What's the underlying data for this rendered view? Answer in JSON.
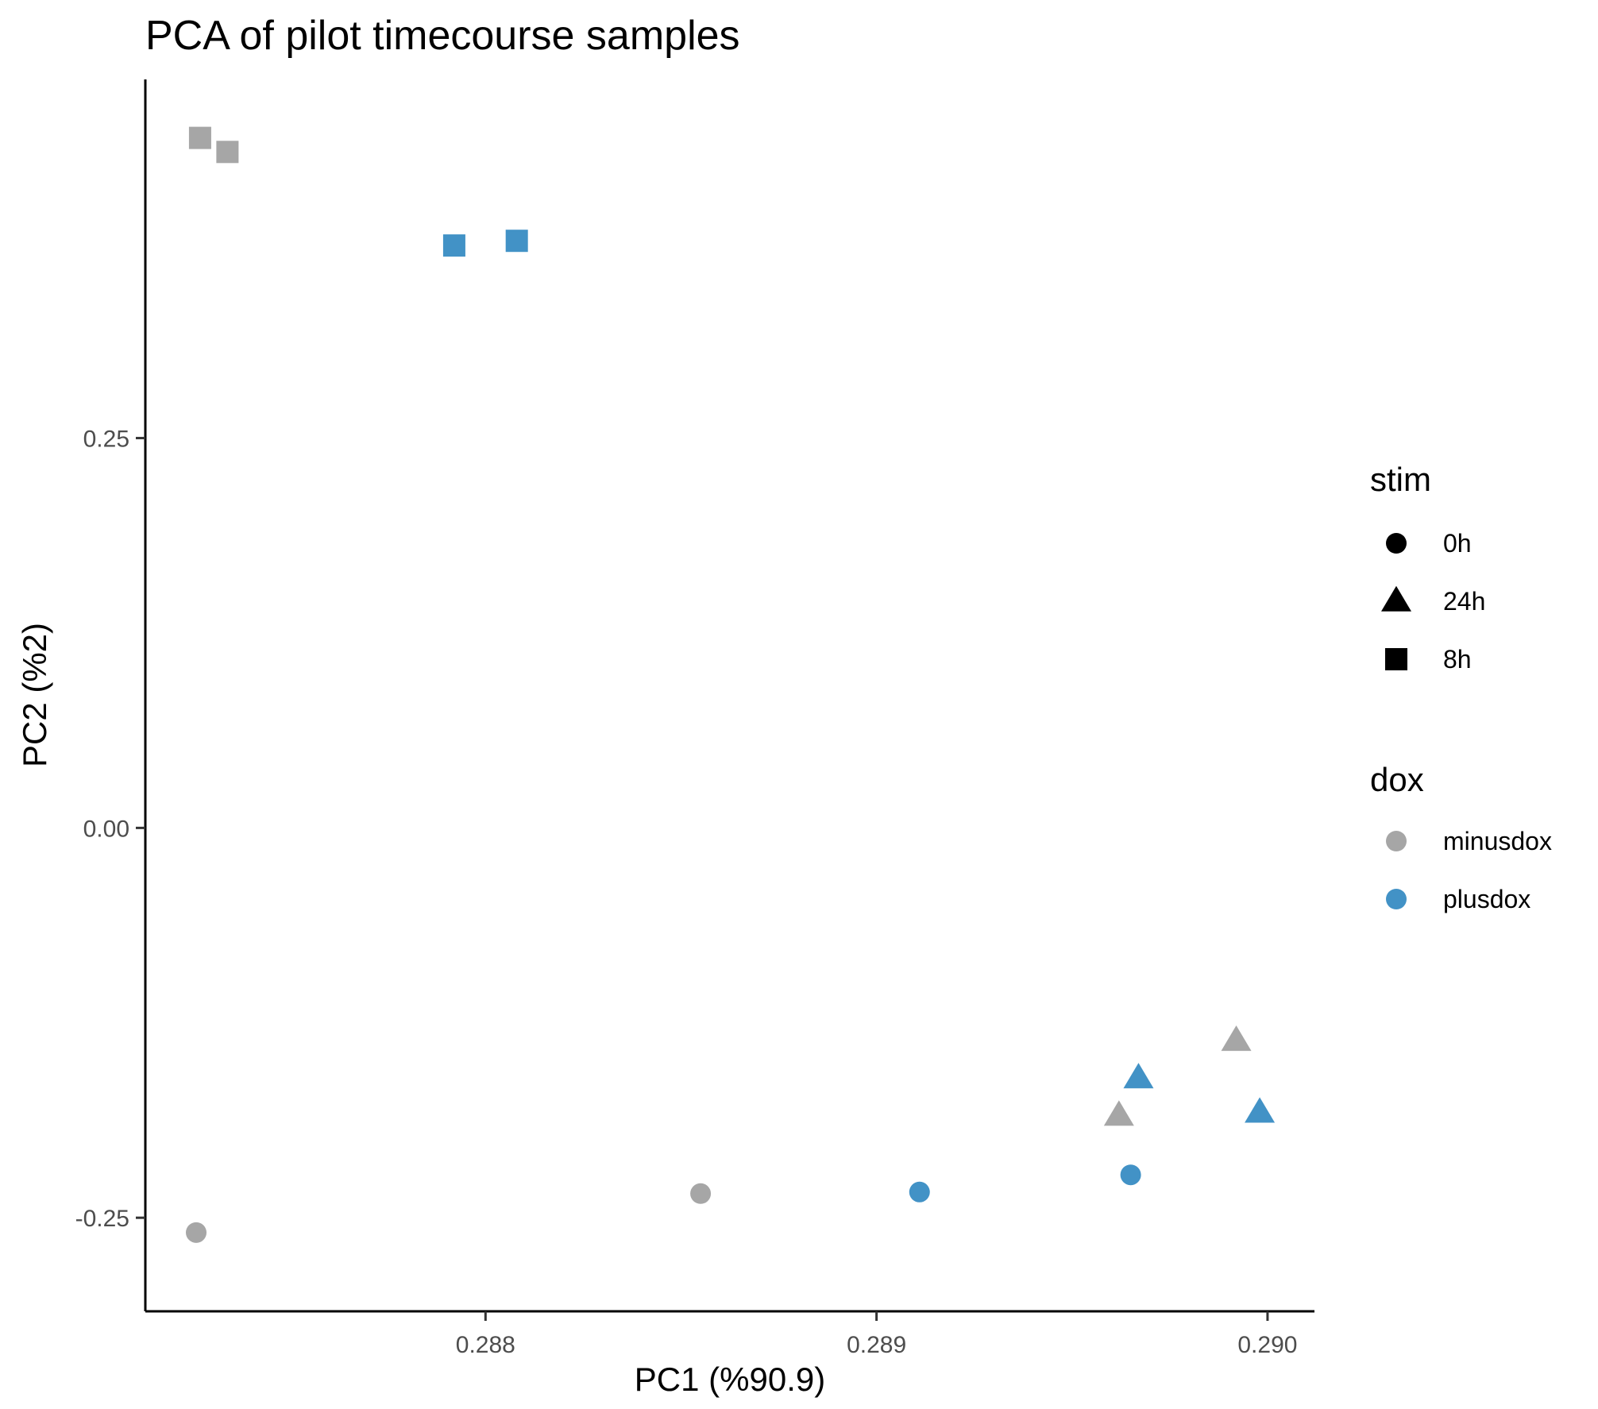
{
  "chart_data": {
    "type": "scatter",
    "title": "PCA of pilot timecourse samples",
    "xlabel": "PC1 (%90.9)",
    "ylabel": "PC2 (%2)",
    "xlim": [
      0.28713,
      0.29012
    ],
    "ylim": [
      -0.31,
      0.48
    ],
    "xticks": [
      0.288,
      0.289,
      0.29
    ],
    "xtick_labels": [
      "0.288",
      "0.289",
      "0.290"
    ],
    "yticks": [
      -0.25,
      0.0,
      0.25
    ],
    "ytick_labels": [
      "-0.25",
      "0.00",
      "0.25"
    ],
    "grid": false,
    "legend_position": "right",
    "legends": {
      "stim": {
        "title": "stim",
        "items": [
          {
            "label": "0h",
            "shape": "circle"
          },
          {
            "label": "24h",
            "shape": "triangle"
          },
          {
            "label": "8h",
            "shape": "square"
          }
        ]
      },
      "dox": {
        "title": "dox",
        "items": [
          {
            "label": "minusdox",
            "color": "#a6a6a6"
          },
          {
            "label": "plusdox",
            "color": "#4292c6"
          }
        ]
      }
    },
    "colors": {
      "minusdox": "#a6a6a6",
      "plusdox": "#4292c6"
    },
    "points": [
      {
        "x": 0.28727,
        "y": 0.4425,
        "stim": "8h",
        "dox": "minusdox"
      },
      {
        "x": 0.28734,
        "y": 0.4335,
        "stim": "8h",
        "dox": "minusdox"
      },
      {
        "x": 0.28792,
        "y": 0.3735,
        "stim": "8h",
        "dox": "plusdox"
      },
      {
        "x": 0.28808,
        "y": 0.3765,
        "stim": "8h",
        "dox": "plusdox"
      },
      {
        "x": 0.28992,
        "y": -0.1365,
        "stim": "24h",
        "dox": "minusdox"
      },
      {
        "x": 0.28962,
        "y": -0.1845,
        "stim": "24h",
        "dox": "minusdox"
      },
      {
        "x": 0.28967,
        "y": -0.1605,
        "stim": "24h",
        "dox": "plusdox"
      },
      {
        "x": 0.28998,
        "y": -0.1825,
        "stim": "24h",
        "dox": "plusdox"
      },
      {
        "x": 0.28726,
        "y": -0.2595,
        "stim": "0h",
        "dox": "minusdox"
      },
      {
        "x": 0.28855,
        "y": -0.2345,
        "stim": "0h",
        "dox": "minusdox"
      },
      {
        "x": 0.28911,
        "y": -0.2335,
        "stim": "0h",
        "dox": "plusdox"
      },
      {
        "x": 0.28965,
        "y": -0.2225,
        "stim": "0h",
        "dox": "plusdox"
      }
    ]
  }
}
